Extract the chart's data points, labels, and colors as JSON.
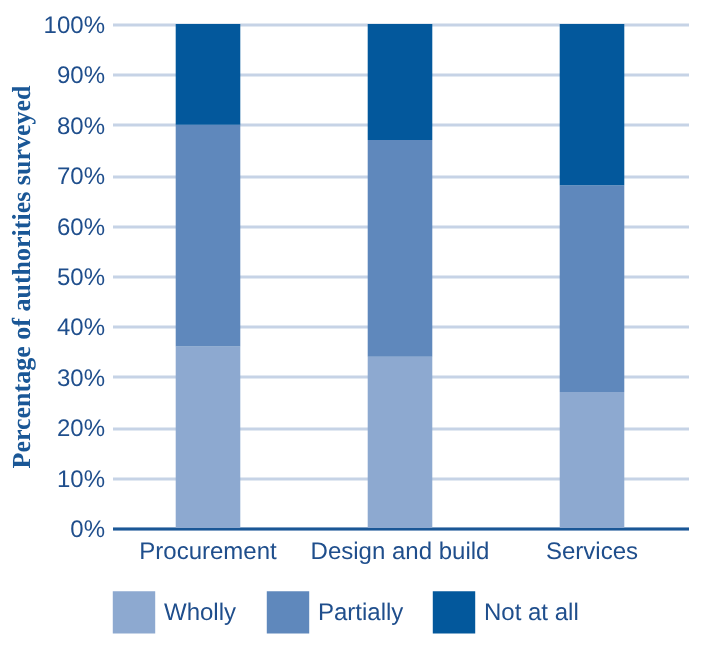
{
  "chart_data": {
    "type": "bar",
    "stacked": true,
    "ylabel": "Percentage of authorities surveyed",
    "categories": [
      "Procurement",
      "Design and build",
      "Services"
    ],
    "series": [
      {
        "name": "Wholly",
        "color": "#8da9d0",
        "values": [
          36,
          34,
          27
        ]
      },
      {
        "name": "Partially",
        "color": "#5f88bc",
        "values": [
          44,
          43,
          41
        ]
      },
      {
        "name": "Not at all",
        "color": "#03589c",
        "values": [
          20,
          23,
          32
        ]
      }
    ],
    "ylim": [
      0,
      100
    ],
    "yticks": [
      {
        "value": 0,
        "label": "0%"
      },
      {
        "value": 10,
        "label": "10%"
      },
      {
        "value": 20,
        "label": "20%"
      },
      {
        "value": 30,
        "label": "30%"
      },
      {
        "value": 40,
        "label": "40%"
      },
      {
        "value": 50,
        "label": "50%"
      },
      {
        "value": 60,
        "label": "60%"
      },
      {
        "value": 70,
        "label": "70%"
      },
      {
        "value": 80,
        "label": "80%"
      },
      {
        "value": 90,
        "label": "90%"
      },
      {
        "value": 100,
        "label": "100%"
      }
    ],
    "grid": "y",
    "legend": "bottom"
  }
}
